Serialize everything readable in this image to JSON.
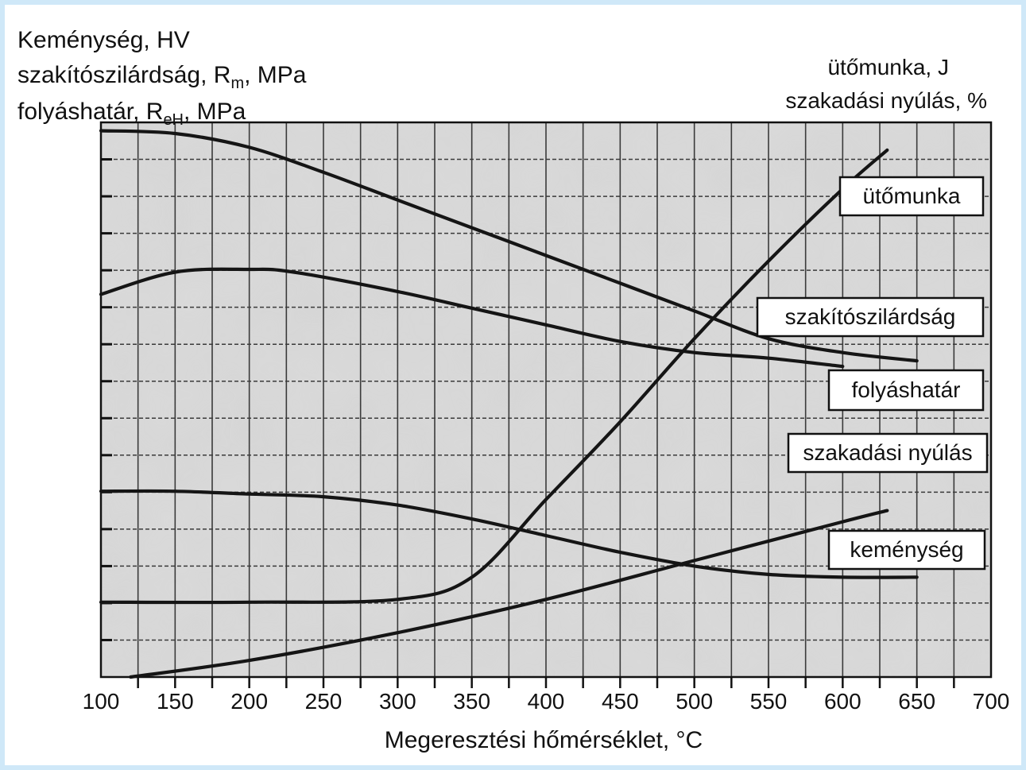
{
  "chart_data": {
    "type": "line",
    "title": "",
    "left_axis_title": {
      "line1": "Keménység, HV",
      "line2_main": "szakítószilárdság, R",
      "line2_sub": "m",
      "line2_tail": ", MPa",
      "line3_main": "folyáshatár, R",
      "line3_sub": "eH",
      "line3_tail": ", MPa"
    },
    "right_axis_title": {
      "line1": "ütőmunka, J",
      "line2": "szakadási nyúlás, %"
    },
    "xlabel": "Megeresztési hőmérséklet, °C",
    "x_tick_labels": [
      "100",
      "150",
      "200",
      "250",
      "300",
      "350",
      "400",
      "450",
      "500",
      "550",
      "600",
      "650",
      "700"
    ],
    "xlim": [
      100,
      700
    ],
    "ylim": [
      0,
      100
    ],
    "grid": true,
    "legend": "inline labels",
    "series": [
      {
        "name": "szakítószilárdság",
        "points": [
          [
            100,
            98.5
          ],
          [
            150,
            98
          ],
          [
            200,
            95.5
          ],
          [
            250,
            91
          ],
          [
            300,
            86
          ],
          [
            350,
            81
          ],
          [
            400,
            76
          ],
          [
            450,
            71
          ],
          [
            500,
            66
          ],
          [
            550,
            61
          ],
          [
            600,
            58.5
          ],
          [
            650,
            57
          ]
        ]
      },
      {
        "name": "folyáshatár",
        "points": [
          [
            100,
            69
          ],
          [
            150,
            73
          ],
          [
            200,
            73.5
          ],
          [
            230,
            73
          ],
          [
            300,
            69.5
          ],
          [
            350,
            66.5
          ],
          [
            400,
            63.5
          ],
          [
            450,
            60.5
          ],
          [
            500,
            58.5
          ],
          [
            550,
            57.5
          ],
          [
            600,
            56
          ]
        ]
      },
      {
        "name": "keménység",
        "points": [
          [
            100,
            33.5
          ],
          [
            150,
            33.5
          ],
          [
            200,
            33
          ],
          [
            250,
            32.5
          ],
          [
            300,
            31
          ],
          [
            350,
            28.5
          ],
          [
            400,
            25.5
          ],
          [
            450,
            22.5
          ],
          [
            500,
            20
          ],
          [
            550,
            18.5
          ],
          [
            600,
            18
          ],
          [
            650,
            18
          ]
        ]
      },
      {
        "name": "ütőmunka",
        "points": [
          [
            100,
            13.5
          ],
          [
            200,
            13.5
          ],
          [
            300,
            14
          ],
          [
            350,
            18
          ],
          [
            400,
            32
          ],
          [
            450,
            46
          ],
          [
            500,
            61
          ],
          [
            550,
            75
          ],
          [
            600,
            88
          ],
          [
            630,
            95
          ]
        ]
      },
      {
        "name": "szakadási nyúlás",
        "points": [
          [
            120,
            0
          ],
          [
            200,
            3
          ],
          [
            300,
            8
          ],
          [
            400,
            14
          ],
          [
            500,
            21
          ],
          [
            600,
            28
          ],
          [
            630,
            30
          ]
        ]
      }
    ]
  }
}
